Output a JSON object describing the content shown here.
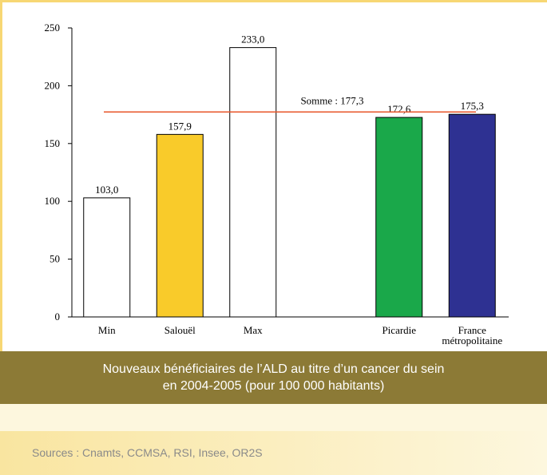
{
  "chart_data": {
    "type": "bar",
    "title": "Nouveaux bénéficiaires de l’ALD au titre d’un cancer du sein",
    "subtitle": "en 2004-2005 (pour 100 000 habitants)",
    "source": "Sources : Cnamts, CCMSA, RSI, Insee, OR2S",
    "categories": [
      "Min",
      "Salouël",
      "Max",
      null,
      "Picardie",
      "France métropolitaine"
    ],
    "values": [
      103.0,
      157.9,
      233.0,
      null,
      172.6,
      175.3
    ],
    "value_labels": [
      "103,0",
      "157,9",
      "233,0",
      null,
      "172,6",
      "175,3"
    ],
    "colors": [
      "#ffffff",
      "#f9cb2a",
      "#ffffff",
      null,
      "#1aa84a",
      "#2e3192"
    ],
    "ylim": [
      0,
      250
    ],
    "yticks": [
      0,
      50,
      100,
      150,
      200,
      250
    ],
    "reference_line": {
      "value": 177.3,
      "label": "Somme : 177,3",
      "color": "#e8562a"
    }
  }
}
